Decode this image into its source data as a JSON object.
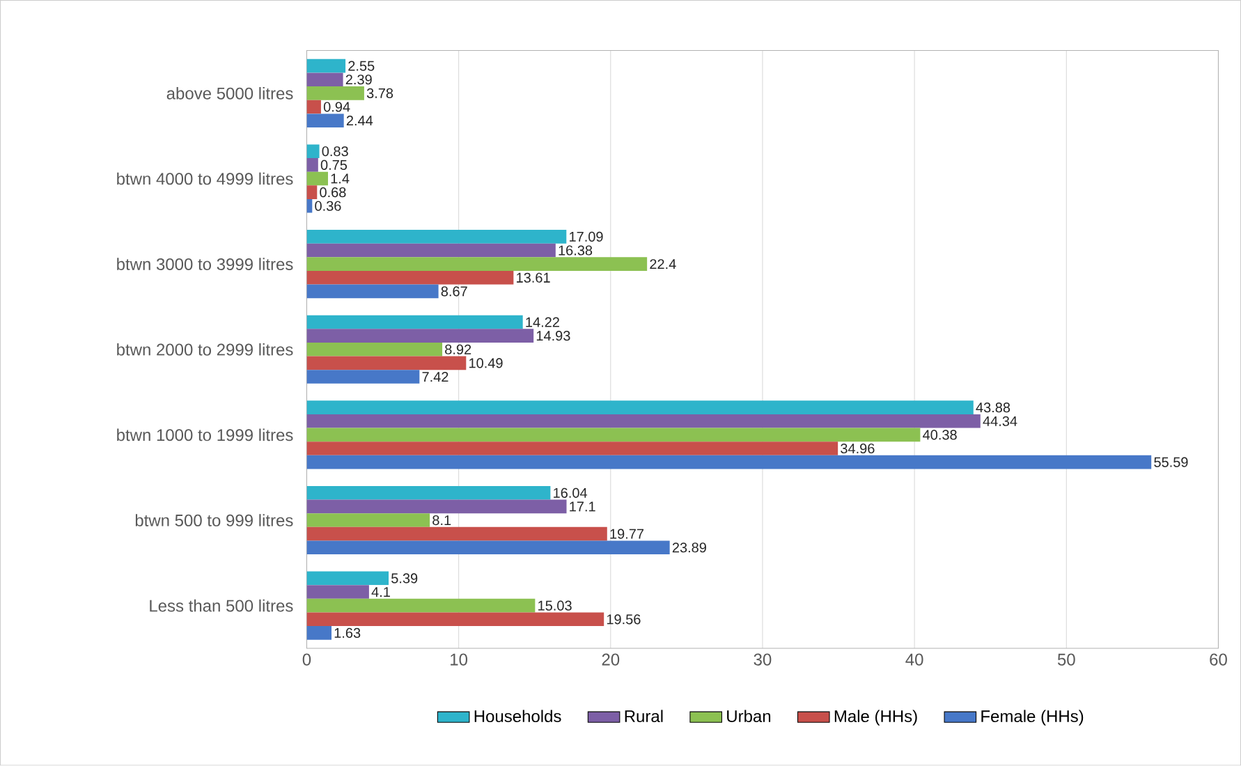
{
  "chart_data": {
    "type": "bar",
    "orientation": "horizontal",
    "categories": [
      "above 5000 litres",
      "btwn 4000 to 4999 litres",
      "btwn 3000 to 3999 litres",
      "btwn 2000 to 2999 litres",
      "btwn 1000 to 1999 litres",
      "btwn 500 to 999 litres",
      "Less than 500 litres"
    ],
    "series": [
      {
        "name": "Households",
        "color": "#2eb4cb",
        "values": [
          2.55,
          0.83,
          17.09,
          14.22,
          43.88,
          16.04,
          5.39
        ]
      },
      {
        "name": "Rural",
        "color": "#7d5fa6",
        "values": [
          2.39,
          0.75,
          16.38,
          14.93,
          44.34,
          17.1,
          4.1
        ]
      },
      {
        "name": "Urban",
        "color": "#8cc152",
        "values": [
          3.78,
          1.4,
          22.4,
          8.92,
          40.38,
          8.1,
          15.03
        ]
      },
      {
        "name": "Male (HHs)",
        "color": "#c8504b",
        "values": [
          0.94,
          0.68,
          13.61,
          10.49,
          34.96,
          19.77,
          19.56
        ]
      },
      {
        "name": "Female (HHs)",
        "color": "#4778c8",
        "values": [
          2.44,
          0.36,
          8.67,
          7.42,
          55.59,
          23.89,
          1.63
        ]
      }
    ],
    "xlim": [
      0,
      60
    ],
    "xticks": [
      0,
      10,
      20,
      30,
      40,
      50,
      60
    ],
    "grid": "x",
    "legend": "bottom",
    "data_labels": true
  }
}
